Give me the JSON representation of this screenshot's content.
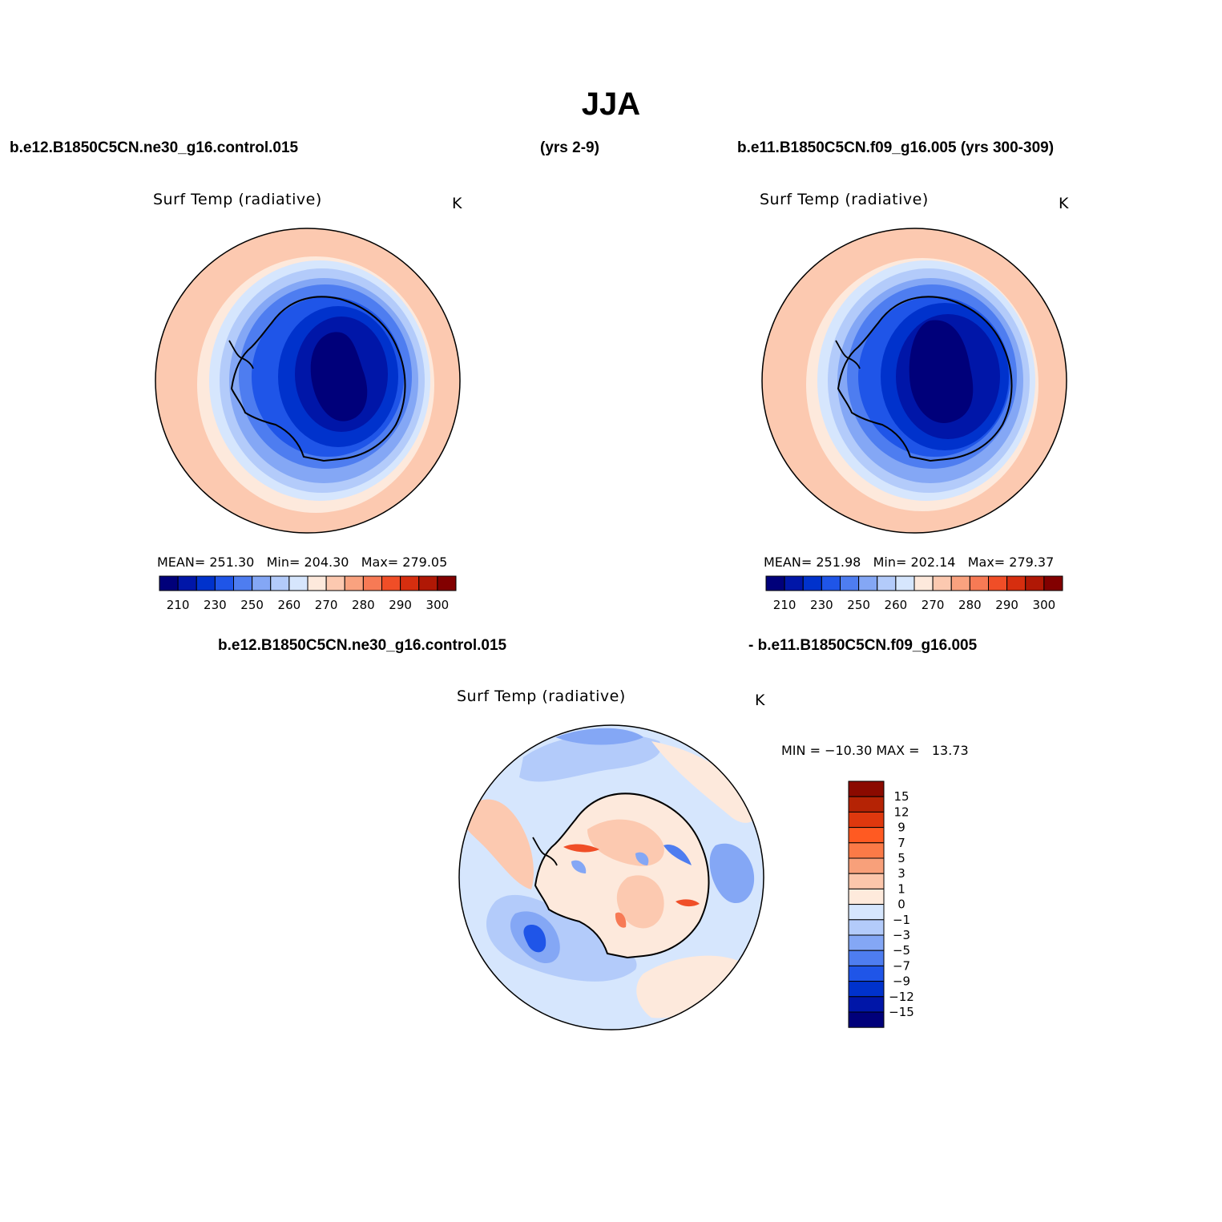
{
  "title": "JJA",
  "top_left": {
    "case": "b.e12.B1850C5CN.ne30_g16.control.015",
    "years": "(yrs 2-9)",
    "variable": "Surf Temp (radiative)",
    "units": "K",
    "stats": {
      "mean_label": "MEAN=",
      "mean": "251.30",
      "min_label": "Min=",
      "min": "204.30",
      "max_label": "Max=",
      "max": "279.05"
    }
  },
  "top_right": {
    "case": "b.e11.B1850C5CN.f09_g16.005 (yrs 300-309)",
    "variable": "Surf Temp (radiative)",
    "units": "K",
    "stats": {
      "mean_label": "MEAN=",
      "mean": "251.98",
      "min_label": "Min=",
      "min": "202.14",
      "max_label": "Max=",
      "max": "279.37"
    }
  },
  "abs_colorbar": {
    "colors": [
      "#00007a",
      "#0016a8",
      "#0032cc",
      "#1f55e8",
      "#4e7df0",
      "#84a7f5",
      "#b3cbfa",
      "#d6e6fd",
      "#fde9dc",
      "#fcc9b0",
      "#f9a27f",
      "#f77a55",
      "#f04e27",
      "#d62e0f",
      "#b01805",
      "#820000"
    ],
    "labels": [
      "210",
      "230",
      "250",
      "260",
      "270",
      "280",
      "290",
      "300"
    ]
  },
  "bottom": {
    "case_a": "b.e12.B1850C5CN.ne30_g16.control.015",
    "case_b": "- b.e11.B1850C5CN.f09_g16.005",
    "variable": "Surf Temp (radiative)",
    "units": "K",
    "minmax": "MIN = −10.30 MAX =   13.73"
  },
  "diff_colorbar": {
    "colors": [
      "#8b0a00",
      "#b52305",
      "#de380e",
      "#ff5a22",
      "#fb7a47",
      "#f8a07a",
      "#fcc6ab",
      "#feeadc",
      "#d6e6fd",
      "#b3cbfa",
      "#84a7f5",
      "#4e7df0",
      "#1f55e8",
      "#0032cc",
      "#0016a8",
      "#00007a"
    ],
    "labels": [
      "15",
      "12",
      "9",
      "7",
      "5",
      "3",
      "1",
      "0",
      "−1",
      "−3",
      "−5",
      "−7",
      "−9",
      "−12",
      "−15"
    ]
  },
  "chart_data": [
    {
      "type": "heatmap",
      "projection": "south-polar stereographic",
      "title": "Surf Temp (radiative)",
      "units": "K",
      "case": "b.e12.B1850C5CN.ne30_g16.control.015 (yrs 2-9)",
      "season": "JJA",
      "mean": 251.3,
      "min": 204.3,
      "max": 279.05,
      "contour_levels": [
        210,
        230,
        250,
        260,
        270,
        280,
        290,
        300
      ]
    },
    {
      "type": "heatmap",
      "projection": "south-polar stereographic",
      "title": "Surf Temp (radiative)",
      "units": "K",
      "case": "b.e11.B1850C5CN.f09_g16.005 (yrs 300-309)",
      "season": "JJA",
      "mean": 251.98,
      "min": 202.14,
      "max": 279.37,
      "contour_levels": [
        210,
        230,
        250,
        260,
        270,
        280,
        290,
        300
      ]
    },
    {
      "type": "heatmap",
      "projection": "south-polar stereographic",
      "title": "Surf Temp (radiative)",
      "units": "K",
      "case": "b.e12.B1850C5CN.ne30_g16.control.015 - b.e11.B1850C5CN.f09_g16.005",
      "season": "JJA",
      "min": -10.3,
      "max": 13.73,
      "contour_levels": [
        -15,
        -12,
        -9,
        -7,
        -5,
        -3,
        -1,
        0,
        1,
        3,
        5,
        7,
        9,
        12,
        15
      ]
    }
  ]
}
